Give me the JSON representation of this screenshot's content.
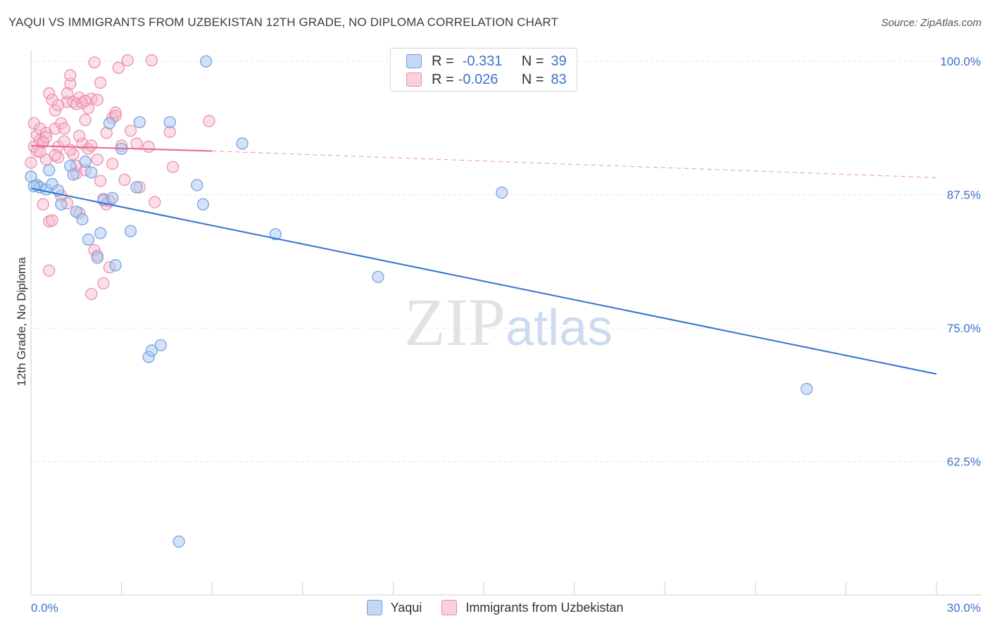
{
  "title": "YAQUI VS IMMIGRANTS FROM UZBEKISTAN 12TH GRADE, NO DIPLOMA CORRELATION CHART",
  "source": "Source: ZipAtlas.com",
  "watermark": {
    "zip": "ZIP",
    "atlas": "atlas"
  },
  "legend": {
    "rows": [
      {
        "r_label": "R =",
        "r_value": "-0.331",
        "n_label": "N =",
        "n_value": "39"
      },
      {
        "r_label": "R =",
        "r_value": "-0.026",
        "n_label": "N =",
        "n_value": "83"
      }
    ]
  },
  "colors": {
    "blue_fill": "#a8c6f0",
    "blue_stroke": "#6f9ee0",
    "blue_line": "#2f73d0",
    "pink_fill": "#f7b8cc",
    "pink_stroke": "#eb8aa8",
    "pink_line": "#e8648c",
    "tick_label": "#3b73c9",
    "grid": "#e3e3e3"
  },
  "chart_data": {
    "type": "scatter",
    "xlabel": "",
    "ylabel": "12th Grade, No Diploma",
    "xlim": [
      0,
      30
    ],
    "ylim": [
      50,
      101
    ],
    "x_tick_labels": [
      "0.0%",
      "30.0%"
    ],
    "y_ticks": [
      62.5,
      75.0,
      87.5,
      100.0
    ],
    "y_tick_labels": [
      "62.5%",
      "75.0%",
      "87.5%",
      "100.0%"
    ],
    "grid": true,
    "legend_position": "top-center",
    "series": [
      {
        "name": "Yaqui",
        "color": "#a8c6f0",
        "trend": {
          "x": [
            0,
            30
          ],
          "y": [
            88.1,
            70.7
          ]
        },
        "points": [
          [
            0.0,
            89.2
          ],
          [
            0.2,
            88.4
          ],
          [
            0.3,
            88.2
          ],
          [
            0.5,
            88.0
          ],
          [
            0.6,
            89.8
          ],
          [
            0.7,
            88.5
          ],
          [
            0.9,
            87.9
          ],
          [
            1.0,
            86.6
          ],
          [
            1.3,
            90.2
          ],
          [
            1.4,
            89.4
          ],
          [
            1.5,
            85.9
          ],
          [
            1.7,
            85.2
          ],
          [
            1.8,
            90.6
          ],
          [
            1.9,
            83.3
          ],
          [
            2.0,
            89.6
          ],
          [
            2.2,
            81.6
          ],
          [
            2.3,
            83.9
          ],
          [
            2.4,
            87.0
          ],
          [
            2.6,
            94.2
          ],
          [
            2.7,
            87.2
          ],
          [
            2.8,
            80.9
          ],
          [
            3.0,
            91.8
          ],
          [
            3.3,
            84.1
          ],
          [
            3.5,
            88.2
          ],
          [
            3.6,
            94.3
          ],
          [
            3.9,
            72.3
          ],
          [
            4.0,
            72.9
          ],
          [
            4.3,
            73.4
          ],
          [
            4.6,
            94.3
          ],
          [
            4.9,
            55.0
          ],
          [
            5.5,
            88.4
          ],
          [
            5.7,
            86.6
          ],
          [
            5.8,
            100.0
          ],
          [
            7.0,
            92.3
          ],
          [
            8.1,
            83.8
          ],
          [
            11.5,
            79.8
          ],
          [
            15.6,
            87.7
          ],
          [
            25.7,
            69.3
          ],
          [
            0.1,
            88.3
          ]
        ]
      },
      {
        "name": "Immigrants from Uzbekistan",
        "color": "#f7b8cc",
        "trend": {
          "x": [
            0,
            6
          ],
          "y": [
            92.1,
            91.6
          ],
          "dashed_x": [
            6,
            30
          ],
          "dashed_y": [
            91.6,
            89.1
          ]
        },
        "points": [
          [
            0.0,
            90.5
          ],
          [
            0.1,
            92.0
          ],
          [
            0.1,
            94.2
          ],
          [
            0.2,
            93.1
          ],
          [
            0.2,
            91.6
          ],
          [
            0.3,
            93.7
          ],
          [
            0.3,
            92.6
          ],
          [
            0.4,
            86.6
          ],
          [
            0.4,
            92.5
          ],
          [
            0.5,
            93.3
          ],
          [
            0.5,
            90.8
          ],
          [
            0.6,
            85.0
          ],
          [
            0.6,
            97.0
          ],
          [
            0.6,
            80.4
          ],
          [
            0.7,
            85.1
          ],
          [
            0.7,
            96.4
          ],
          [
            0.8,
            95.4
          ],
          [
            0.8,
            93.7
          ],
          [
            0.9,
            91.0
          ],
          [
            0.9,
            92.0
          ],
          [
            1.0,
            87.4
          ],
          [
            1.0,
            94.2
          ],
          [
            1.1,
            93.7
          ],
          [
            1.2,
            96.2
          ],
          [
            1.2,
            86.7
          ],
          [
            1.3,
            97.9
          ],
          [
            1.3,
            98.7
          ],
          [
            1.4,
            96.2
          ],
          [
            1.4,
            91.3
          ],
          [
            1.5,
            96.0
          ],
          [
            1.5,
            89.5
          ],
          [
            1.6,
            96.6
          ],
          [
            1.6,
            85.8
          ],
          [
            1.7,
            92.3
          ],
          [
            1.7,
            96.1
          ],
          [
            1.8,
            94.5
          ],
          [
            1.8,
            89.8
          ],
          [
            1.9,
            91.8
          ],
          [
            1.9,
            95.6
          ],
          [
            2.0,
            96.5
          ],
          [
            2.0,
            92.1
          ],
          [
            2.1,
            82.3
          ],
          [
            2.1,
            99.9
          ],
          [
            2.2,
            90.8
          ],
          [
            2.2,
            96.4
          ],
          [
            2.3,
            88.8
          ],
          [
            2.3,
            98.0
          ],
          [
            2.4,
            87.1
          ],
          [
            2.5,
            93.3
          ],
          [
            2.5,
            86.6
          ],
          [
            2.6,
            80.7
          ],
          [
            2.7,
            90.4
          ],
          [
            2.7,
            94.7
          ],
          [
            2.8,
            95.2
          ],
          [
            2.9,
            99.4
          ],
          [
            3.0,
            92.1
          ],
          [
            3.1,
            88.9
          ],
          [
            3.2,
            100.1
          ],
          [
            3.3,
            93.5
          ],
          [
            3.5,
            92.3
          ],
          [
            3.6,
            88.2
          ],
          [
            3.9,
            92.0
          ],
          [
            4.0,
            100.1
          ],
          [
            4.1,
            86.8
          ],
          [
            4.6,
            93.4
          ],
          [
            4.7,
            90.1
          ],
          [
            5.9,
            94.4
          ],
          [
            1.1,
            92.5
          ],
          [
            0.8,
            91.2
          ],
          [
            0.4,
            92.4
          ],
          [
            1.6,
            93.0
          ],
          [
            2.0,
            78.2
          ],
          [
            2.4,
            79.2
          ],
          [
            2.2,
            81.8
          ],
          [
            1.3,
            91.7
          ],
          [
            0.9,
            95.9
          ],
          [
            1.5,
            90.2
          ],
          [
            2.6,
            86.9
          ],
          [
            0.3,
            91.5
          ],
          [
            1.8,
            96.3
          ],
          [
            2.8,
            94.9
          ],
          [
            1.2,
            97.0
          ],
          [
            0.5,
            92.9
          ]
        ]
      }
    ]
  }
}
